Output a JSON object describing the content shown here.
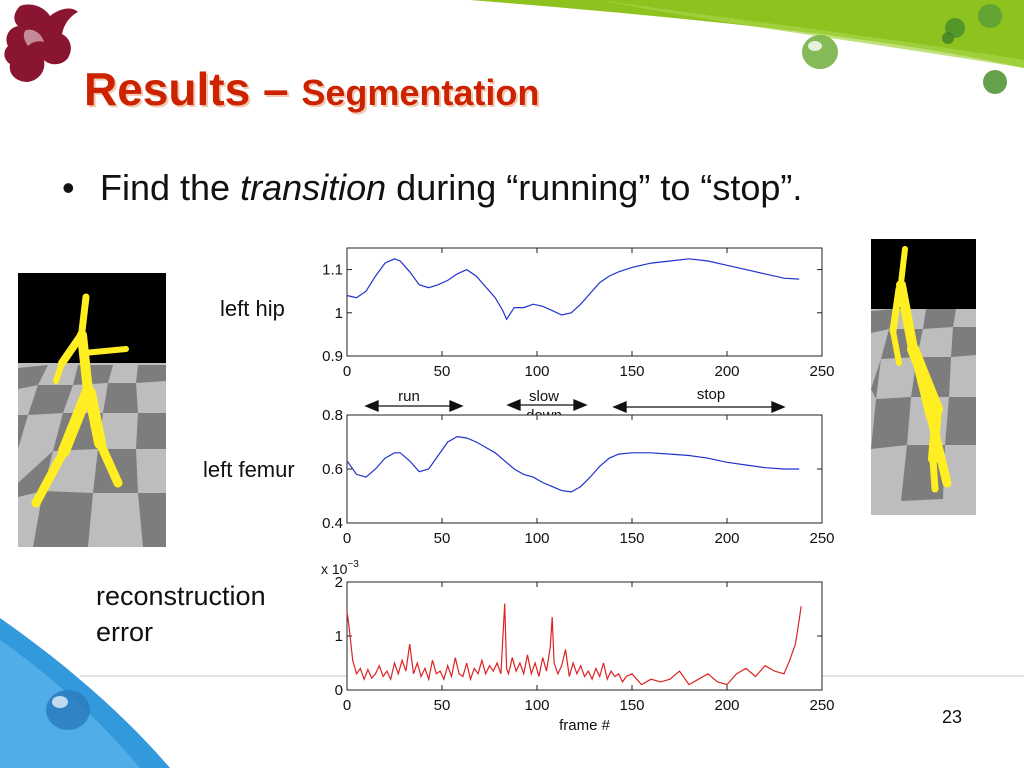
{
  "slide": {
    "title_main": "Results – ",
    "title_sub": "Segmentation",
    "bullet_plain": "Find the ",
    "bullet_italic": "transition",
    "bullet_rest": " during “running” to “stop”.",
    "page_number": "23"
  },
  "labels": {
    "left_hip": "left hip",
    "left_femur": "left femur",
    "reconstruction_line1": "reconstruction",
    "reconstruction_line2": "error"
  },
  "segments": {
    "run": "run",
    "slow_line1": "slow",
    "slow_line2": "down",
    "stop": "stop"
  },
  "colors": {
    "title": "#cc2200",
    "accent_green": "#8dc21f",
    "accent_blue": "#3399dd",
    "line_blue": "#2233cc",
    "line_red": "#dd2222",
    "figure_yellow": "#ffee22"
  },
  "chart_data": [
    {
      "type": "line",
      "name_label": "left hip",
      "xlim": [
        0,
        250
      ],
      "ylim": [
        0.9,
        1.15
      ],
      "xticks": [
        "0",
        "50",
        "100",
        "150",
        "200",
        "250"
      ],
      "yticks": [
        "0.9",
        "1",
        "1.1"
      ],
      "ytick_values": [
        0.9,
        1.0,
        1.1
      ],
      "color": "#2233cc",
      "x": [
        0,
        5,
        10,
        15,
        20,
        25,
        28,
        33,
        38,
        43,
        48,
        53,
        58,
        63,
        68,
        73,
        78,
        82,
        84,
        88,
        93,
        98,
        103,
        108,
        113,
        118,
        123,
        128,
        133,
        138,
        143,
        150,
        160,
        170,
        180,
        190,
        200,
        210,
        220,
        230,
        238
      ],
      "y": [
        1.04,
        1.035,
        1.05,
        1.085,
        1.115,
        1.125,
        1.12,
        1.095,
        1.065,
        1.058,
        1.065,
        1.075,
        1.09,
        1.1,
        1.085,
        1.06,
        1.035,
        1.005,
        0.985,
        1.012,
        1.012,
        1.02,
        1.015,
        1.005,
        0.995,
        1.0,
        1.02,
        1.045,
        1.07,
        1.085,
        1.095,
        1.105,
        1.115,
        1.12,
        1.125,
        1.12,
        1.11,
        1.1,
        1.09,
        1.08,
        1.078
      ]
    },
    {
      "type": "line",
      "name_label": "left femur",
      "xlim": [
        0,
        250
      ],
      "ylim": [
        0.4,
        0.8
      ],
      "xticks": [
        "0",
        "50",
        "100",
        "150",
        "200",
        "250"
      ],
      "yticks": [
        "0.4",
        "0.6",
        "0.8"
      ],
      "ytick_values": [
        0.4,
        0.6,
        0.8
      ],
      "color": "#2233cc",
      "x": [
        0,
        5,
        10,
        15,
        20,
        25,
        28,
        33,
        38,
        43,
        48,
        53,
        58,
        63,
        68,
        73,
        78,
        83,
        88,
        93,
        98,
        103,
        108,
        113,
        118,
        123,
        128,
        133,
        138,
        143,
        150,
        160,
        170,
        180,
        190,
        200,
        210,
        220,
        230,
        238
      ],
      "y": [
        0.63,
        0.58,
        0.57,
        0.6,
        0.64,
        0.66,
        0.66,
        0.63,
        0.59,
        0.6,
        0.65,
        0.7,
        0.72,
        0.715,
        0.7,
        0.68,
        0.66,
        0.63,
        0.6,
        0.58,
        0.57,
        0.55,
        0.535,
        0.52,
        0.515,
        0.535,
        0.57,
        0.61,
        0.64,
        0.655,
        0.66,
        0.66,
        0.655,
        0.65,
        0.64,
        0.625,
        0.615,
        0.605,
        0.6,
        0.6
      ]
    },
    {
      "type": "line",
      "ylabel_multiplier": "x 10^-3",
      "xlabel": "frame #",
      "xlim": [
        0,
        250
      ],
      "ylim": [
        0,
        2
      ],
      "xticks": [
        "0",
        "50",
        "100",
        "150",
        "200",
        "250"
      ],
      "yticks": [
        "0",
        "1",
        "2"
      ],
      "ytick_values": [
        0,
        1,
        2
      ],
      "color": "#dd2222",
      "x": [
        0,
        1,
        3,
        5,
        7,
        9,
        11,
        13,
        15,
        17,
        19,
        21,
        23,
        25,
        27,
        29,
        31,
        33,
        35,
        37,
        39,
        41,
        43,
        45,
        47,
        49,
        51,
        53,
        55,
        57,
        59,
        61,
        63,
        65,
        67,
        69,
        71,
        73,
        75,
        77,
        79,
        81,
        83,
        84,
        85,
        87,
        89,
        91,
        93,
        95,
        97,
        99,
        101,
        103,
        105,
        107,
        108,
        109,
        111,
        113,
        115,
        117,
        119,
        121,
        123,
        125,
        127,
        129,
        131,
        133,
        135,
        137,
        139,
        141,
        143,
        145,
        147,
        150,
        155,
        160,
        165,
        170,
        175,
        180,
        185,
        190,
        195,
        200,
        205,
        210,
        215,
        220,
        225,
        230,
        233,
        236,
        238,
        239
      ],
      "y": [
        1.45,
        1.2,
        0.55,
        0.3,
        0.4,
        0.2,
        0.38,
        0.22,
        0.3,
        0.45,
        0.25,
        0.35,
        0.2,
        0.5,
        0.3,
        0.55,
        0.35,
        0.85,
        0.3,
        0.5,
        0.25,
        0.4,
        0.2,
        0.55,
        0.3,
        0.35,
        0.2,
        0.45,
        0.25,
        0.6,
        0.3,
        0.25,
        0.5,
        0.2,
        0.4,
        0.3,
        0.55,
        0.3,
        0.45,
        0.35,
        0.5,
        0.3,
        1.6,
        0.4,
        0.3,
        0.6,
        0.35,
        0.5,
        0.3,
        0.65,
        0.3,
        0.5,
        0.25,
        0.6,
        0.35,
        0.8,
        1.35,
        0.5,
        0.3,
        0.45,
        0.75,
        0.25,
        0.5,
        0.3,
        0.45,
        0.25,
        0.35,
        0.2,
        0.4,
        0.25,
        0.5,
        0.2,
        0.35,
        0.25,
        0.3,
        0.15,
        0.25,
        0.3,
        0.1,
        0.2,
        0.15,
        0.2,
        0.35,
        0.1,
        0.2,
        0.3,
        0.15,
        0.1,
        0.3,
        0.4,
        0.25,
        0.45,
        0.35,
        0.3,
        0.55,
        0.85,
        1.3,
        1.55
      ]
    }
  ]
}
